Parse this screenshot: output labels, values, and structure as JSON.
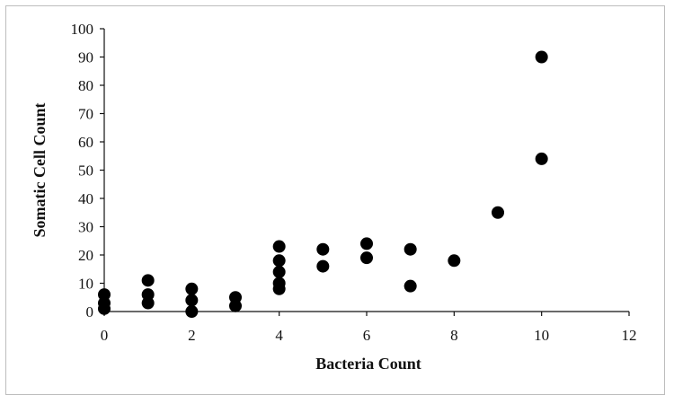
{
  "chart_data": {
    "type": "scatter",
    "xlabel": "Bacteria Count",
    "ylabel": "Somatic Cell Count",
    "xlim": [
      0,
      12
    ],
    "ylim": [
      0,
      100
    ],
    "xticks": [
      "0",
      "2",
      "4",
      "6",
      "8",
      "10",
      "12"
    ],
    "yticks": [
      "0",
      "10",
      "20",
      "30",
      "40",
      "50",
      "60",
      "70",
      "80",
      "90",
      "100"
    ],
    "grid": false,
    "legend": "none",
    "marker_color": "#000000",
    "points": [
      {
        "x": 0,
        "y": 6
      },
      {
        "x": 0,
        "y": 3
      },
      {
        "x": 0,
        "y": 1
      },
      {
        "x": 1,
        "y": 11
      },
      {
        "x": 1,
        "y": 6
      },
      {
        "x": 1,
        "y": 3
      },
      {
        "x": 2,
        "y": 8
      },
      {
        "x": 2,
        "y": 4
      },
      {
        "x": 2,
        "y": 0
      },
      {
        "x": 3,
        "y": 5
      },
      {
        "x": 3,
        "y": 2
      },
      {
        "x": 4,
        "y": 23
      },
      {
        "x": 4,
        "y": 18
      },
      {
        "x": 4,
        "y": 14
      },
      {
        "x": 4,
        "y": 10
      },
      {
        "x": 4,
        "y": 8
      },
      {
        "x": 5,
        "y": 22
      },
      {
        "x": 5,
        "y": 16
      },
      {
        "x": 6,
        "y": 24
      },
      {
        "x": 6,
        "y": 19
      },
      {
        "x": 7,
        "y": 22
      },
      {
        "x": 7,
        "y": 9
      },
      {
        "x": 8,
        "y": 18
      },
      {
        "x": 9,
        "y": 35
      },
      {
        "x": 10,
        "y": 90
      },
      {
        "x": 10,
        "y": 54
      }
    ]
  }
}
